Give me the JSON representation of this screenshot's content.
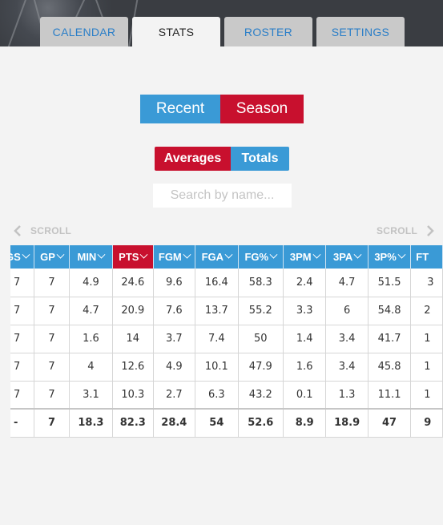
{
  "tabs": [
    {
      "label": "CALENDAR",
      "active": false
    },
    {
      "label": "STATS",
      "active": true
    },
    {
      "label": "ROSTER",
      "active": false
    },
    {
      "label": "SETTINGS",
      "active": false
    }
  ],
  "period_toggle": {
    "recent": "Recent",
    "season": "Season",
    "selected": "Season"
  },
  "mode_toggle": {
    "averages": "Averages",
    "totals": "Totals",
    "selected": "Averages"
  },
  "search": {
    "placeholder": "Search by name...",
    "value": ""
  },
  "scroll": {
    "left": "SCROLL",
    "right": "SCROLL"
  },
  "columns": [
    "GS",
    "GP",
    "MIN",
    "PTS",
    "FGM",
    "FGA",
    "FG%",
    "3PM",
    "3PA",
    "3P%",
    "FT"
  ],
  "sorted_column": "PTS",
  "rows": [
    [
      "7",
      "7",
      "4.9",
      "24.6",
      "9.6",
      "16.4",
      "58.3",
      "2.4",
      "4.7",
      "51.5",
      "3"
    ],
    [
      "7",
      "7",
      "4.7",
      "20.9",
      "7.6",
      "13.7",
      "55.2",
      "3.3",
      "6",
      "54.8",
      "2"
    ],
    [
      "7",
      "7",
      "1.6",
      "14",
      "3.7",
      "7.4",
      "50",
      "1.4",
      "3.4",
      "41.7",
      "1"
    ],
    [
      "7",
      "7",
      "4",
      "12.6",
      "4.9",
      "10.1",
      "47.9",
      "1.6",
      "3.4",
      "45.8",
      "1"
    ],
    [
      "7",
      "7",
      "3.1",
      "10.3",
      "2.7",
      "6.3",
      "43.2",
      "0.1",
      "1.3",
      "11.1",
      "1"
    ]
  ],
  "totals": [
    "-",
    "7",
    "18.3",
    "82.3",
    "28.4",
    "54",
    "52.6",
    "8.9",
    "18.9",
    "47",
    "9"
  ],
  "colors": {
    "accent_blue": "#3a9ad6",
    "accent_red": "#c8102e",
    "tab_text": "#2a7ec8"
  }
}
